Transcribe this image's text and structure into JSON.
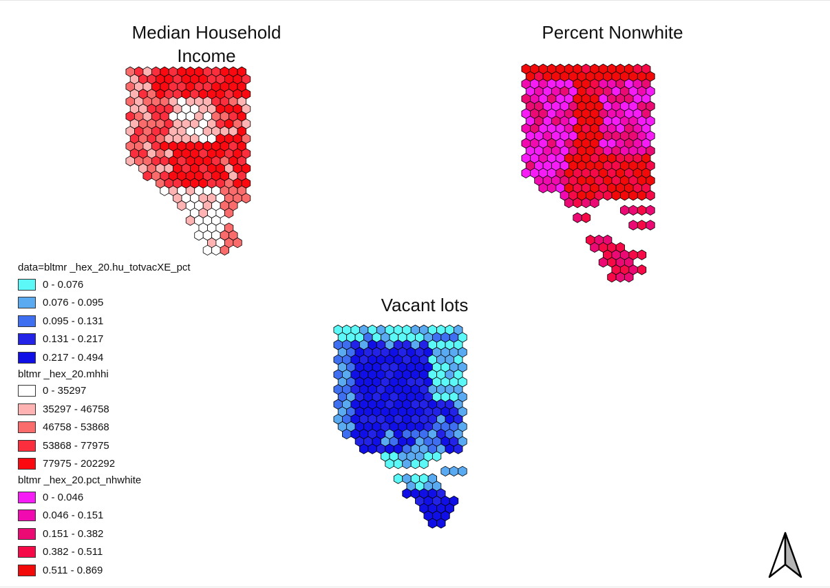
{
  "maps": {
    "income": {
      "title": "Median Household\nIncome",
      "colors": [
        "#ffffff",
        "#ffb3b3",
        "#fa6b6b",
        "#fa2e3d",
        "#fa0a10"
      ]
    },
    "nonwhite": {
      "title": "Percent Nonwhite",
      "colors": [
        "#f51cf5",
        "#f00aaf",
        "#eb0a73",
        "#f50a47",
        "#f20a0a"
      ]
    },
    "vacant": {
      "title": "Vacant lots",
      "colors": [
        "#5cf7f7",
        "#5aaaf2",
        "#3d6ff0",
        "#2323e8",
        "#1010e6"
      ]
    }
  },
  "legend": {
    "groups": [
      {
        "title": "data=bltmr _hex_20.hu_totvacXE_pct",
        "items": [
          {
            "label": "0 - 0.076",
            "color": "#5cf7f7"
          },
          {
            "label": "0.076 - 0.095",
            "color": "#5aaaf2"
          },
          {
            "label": "0.095 - 0.131",
            "color": "#3d6ff0"
          },
          {
            "label": "0.131 - 0.217",
            "color": "#2323e8"
          },
          {
            "label": "0.217 - 0.494",
            "color": "#1010e6"
          }
        ]
      },
      {
        "title": "bltmr _hex_20.mhhi",
        "items": [
          {
            "label": "0 - 35297",
            "color": "#ffffff"
          },
          {
            "label": "35297 - 46758",
            "color": "#ffb3b3"
          },
          {
            "label": "46758 - 53868",
            "color": "#fa6b6b"
          },
          {
            "label": "53868 - 77975",
            "color": "#fa2e3d"
          },
          {
            "label": "77975 - 202292",
            "color": "#fa0a10"
          }
        ]
      },
      {
        "title": "bltmr _hex_20.pct_nhwhite",
        "items": [
          {
            "label": "0 - 0.046",
            "color": "#f51cf5"
          },
          {
            "label": "0.046 - 0.151",
            "color": "#f00aaf"
          },
          {
            "label": "0.151 - 0.382",
            "color": "#eb0a73"
          },
          {
            "label": "0.382 - 0.511",
            "color": "#f50a47"
          },
          {
            "label": "0.511 - 0.869",
            "color": "#f20a0a"
          }
        ]
      }
    ]
  },
  "north_arrow": {
    "icon": "north-arrow-icon"
  }
}
